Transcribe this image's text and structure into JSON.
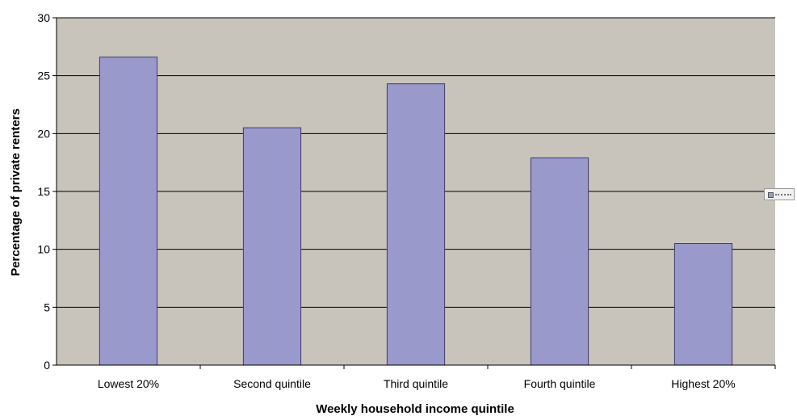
{
  "chart_data": {
    "type": "bar",
    "categories": [
      "Lowest 20%",
      "Second quintile",
      "Third quintile",
      "Fourth quintile",
      "Highest 20%"
    ],
    "values": [
      26.6,
      20.5,
      24.3,
      17.9,
      10.5
    ],
    "title": "",
    "xlabel": "Weekly household income quintile",
    "ylabel": "Percentage of private renters",
    "ylim": [
      0,
      30
    ],
    "yticks": [
      0,
      5,
      10,
      15,
      20,
      25,
      30
    ],
    "grid": true,
    "legend": "right",
    "colors": {
      "bar": "#9999cc",
      "bar_edge": "#3d3d6b",
      "plot_background": "#c8c4bc",
      "gridline": "#000000"
    }
  }
}
